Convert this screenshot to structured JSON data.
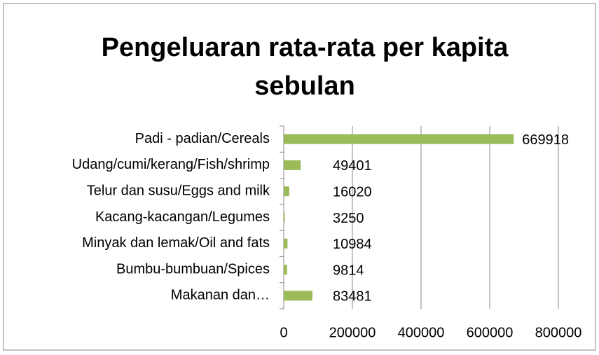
{
  "chart_data": {
    "type": "bar",
    "orientation": "horizontal",
    "title_lines": [
      "Pengeluaran rata-rata per kapita",
      "sebulan"
    ],
    "categories": [
      "Padi - padian/Cereals",
      "Udang/cumi/kerang/Fish/shrimp",
      "Telur dan susu/Eggs and milk",
      "Kacang-kacangan/Legumes",
      "Minyak dan lemak/Oil and fats",
      "Bumbu-bumbuan/Spices",
      "Makanan dan…"
    ],
    "values": [
      669918,
      49401,
      16020,
      3250,
      10984,
      9814,
      83481
    ],
    "color": "#9bbb59",
    "xlim": [
      0,
      800000
    ],
    "xticks": [
      0,
      200000,
      400000,
      600000,
      800000
    ],
    "grid": true
  }
}
